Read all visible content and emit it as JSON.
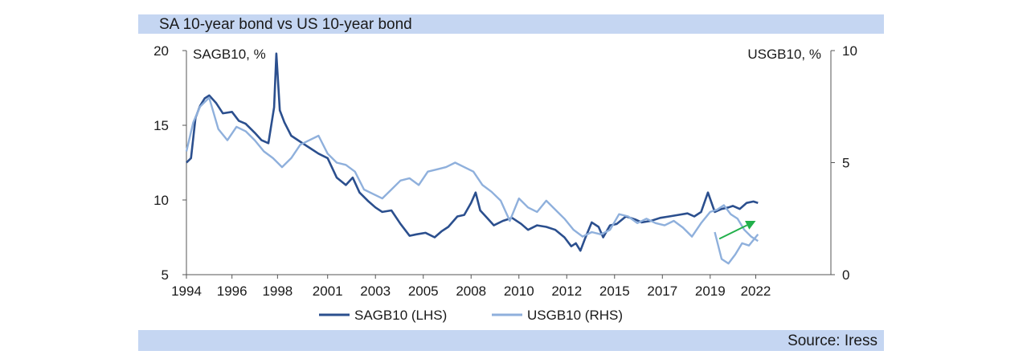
{
  "title": "SA 10-year bond vs US 10-year bond",
  "source": "Source: Iress",
  "chart_data": {
    "type": "line",
    "left_axis_label": "SAGB10, %",
    "right_axis_label": "USGB10, %",
    "left_ylim": [
      5,
      20
    ],
    "right_ylim": [
      0,
      10
    ],
    "left_yticks": [
      "20",
      "15",
      "10",
      "5"
    ],
    "right_yticks": [
      "10",
      "5",
      "0"
    ],
    "xlim": [
      1994.0,
      2022.3
    ],
    "xticks": [
      {
        "label": "1994",
        "value": 1994
      },
      {
        "label": "1996",
        "value": 1996
      },
      {
        "label": "1998",
        "value": 1998
      },
      {
        "label": "2001",
        "value": 2000.2
      },
      {
        "label": "2003",
        "value": 2002.3
      },
      {
        "label": "2005",
        "value": 2004.4
      },
      {
        "label": "2008",
        "value": 2006.5
      },
      {
        "label": "2010",
        "value": 2008.6
      },
      {
        "label": "2012",
        "value": 2010.7
      },
      {
        "label": "2015",
        "value": 2012.8
      },
      {
        "label": "2017",
        "value": 2014.9
      },
      {
        "label": "2019",
        "value": 2017.0
      },
      {
        "label": "2022",
        "value": 2019.0
      }
    ],
    "grid": false,
    "legend_position": "bottom",
    "series": [
      {
        "name": "SAGB10 (LHS)",
        "color": "#2b4f8e",
        "x": [
          1994.0,
          1994.2,
          1994.4,
          1994.6,
          1994.8,
          1995.0,
          1995.3,
          1995.6,
          1996.0,
          1996.3,
          1996.6,
          1997.0,
          1997.3,
          1997.6,
          1997.85,
          1997.95,
          1998.1,
          1998.3,
          1998.6,
          1999.0,
          1999.4,
          1999.8,
          2000.2,
          2000.6,
          2001.0,
          2001.3,
          2001.6,
          2002.0,
          2002.3,
          2002.6,
          2003.0,
          2003.4,
          2003.8,
          2004.1,
          2004.5,
          2004.9,
          2005.2,
          2005.5,
          2005.9,
          2006.2,
          2006.5,
          2006.7,
          2006.9,
          2007.2,
          2007.5,
          2007.9,
          2008.3,
          2008.7,
          2009.0,
          2009.4,
          2009.8,
          2010.2,
          2010.6,
          2010.9,
          2011.1,
          2011.3,
          2011.5,
          2011.8,
          2012.1,
          2012.3,
          2012.6,
          2012.9,
          2013.3,
          2013.7,
          2014.0,
          2014.4,
          2014.8,
          2015.2,
          2015.6,
          2016.0,
          2016.3,
          2016.6,
          2016.9,
          2017.2,
          2017.5,
          2017.8,
          2018.0,
          2018.3,
          2018.6,
          2018.9,
          2019.1
        ],
        "values": [
          12.5,
          12.8,
          15.5,
          16.3,
          16.8,
          17.0,
          16.5,
          15.8,
          15.9,
          15.3,
          15.1,
          14.5,
          14.0,
          13.8,
          16.2,
          19.8,
          16.0,
          15.2,
          14.3,
          13.9,
          13.5,
          13.1,
          12.8,
          11.5,
          11.0,
          11.5,
          10.5,
          9.9,
          9.5,
          9.2,
          9.3,
          8.4,
          7.6,
          7.7,
          7.8,
          7.5,
          7.9,
          8.2,
          8.9,
          9.0,
          9.8,
          10.5,
          9.3,
          8.8,
          8.3,
          8.6,
          8.8,
          8.4,
          8.0,
          8.3,
          8.2,
          8.0,
          7.5,
          6.9,
          7.1,
          6.6,
          7.4,
          8.5,
          8.2,
          7.5,
          8.3,
          8.4,
          8.9,
          8.7,
          8.5,
          8.6,
          8.8,
          8.9,
          9.0,
          9.1,
          8.9,
          9.2,
          10.5,
          9.2,
          9.4,
          9.5,
          9.6,
          9.4,
          9.8,
          9.9,
          9.8
        ]
      },
      {
        "name": "USGB10 (RHS)",
        "color": "#8fb0dc",
        "x": [
          1994.0,
          1994.3,
          1994.6,
          1995.0,
          1995.4,
          1995.8,
          1996.2,
          1996.6,
          1997.0,
          1997.4,
          1997.8,
          1998.2,
          1998.6,
          1999.0,
          1999.4,
          1999.8,
          2000.2,
          2000.6,
          2001.0,
          2001.4,
          2001.8,
          2002.2,
          2002.6,
          2003.0,
          2003.4,
          2003.8,
          2004.2,
          2004.6,
          2005.0,
          2005.4,
          2005.8,
          2006.2,
          2006.6,
          2007.0,
          2007.4,
          2007.8,
          2008.2,
          2008.6,
          2009.0,
          2009.4,
          2009.8,
          2010.2,
          2010.6,
          2011.0,
          2011.4,
          2011.8,
          2012.2,
          2012.6,
          2013.0,
          2013.4,
          2013.8,
          2014.2,
          2014.6,
          2015.0,
          2015.4,
          2015.8,
          2016.2,
          2016.6,
          2017.0,
          2017.3,
          2017.6,
          2017.9,
          2018.2,
          2018.5,
          2018.8,
          2019.1
        ],
        "values": [
          5.5,
          6.8,
          7.5,
          7.9,
          6.5,
          6.0,
          6.6,
          6.4,
          6.0,
          5.5,
          5.2,
          4.8,
          5.2,
          5.8,
          6.0,
          6.2,
          5.4,
          5.0,
          4.9,
          4.6,
          3.8,
          3.6,
          3.4,
          3.8,
          4.2,
          4.3,
          4.0,
          4.6,
          4.7,
          4.8,
          5.0,
          4.8,
          4.6,
          4.0,
          3.7,
          3.3,
          2.4,
          3.4,
          3.0,
          2.8,
          3.3,
          2.9,
          2.5,
          2.0,
          1.7,
          1.9,
          1.8,
          2.0,
          2.7,
          2.6,
          2.3,
          2.5,
          2.3,
          2.2,
          2.4,
          2.1,
          1.7,
          2.3,
          2.8,
          2.9,
          3.1,
          2.7,
          2.5,
          2.0,
          1.7,
          1.5
        ]
      },
      {
        "name": "",
        "color": "#8fb0dc",
        "x": [
          2017.2,
          2017.5,
          2017.8,
          2018.1,
          2018.4,
          2018.7,
          2019.1
        ],
        "values": [
          1.9,
          0.7,
          0.5,
          0.9,
          1.4,
          1.3,
          1.8
        ]
      }
    ],
    "annotations": [
      {
        "type": "arrow",
        "color": "#22b04b",
        "from": [
          2017.4,
          1.6
        ],
        "to": [
          2019.0,
          2.4
        ],
        "axis": "right"
      }
    ]
  }
}
